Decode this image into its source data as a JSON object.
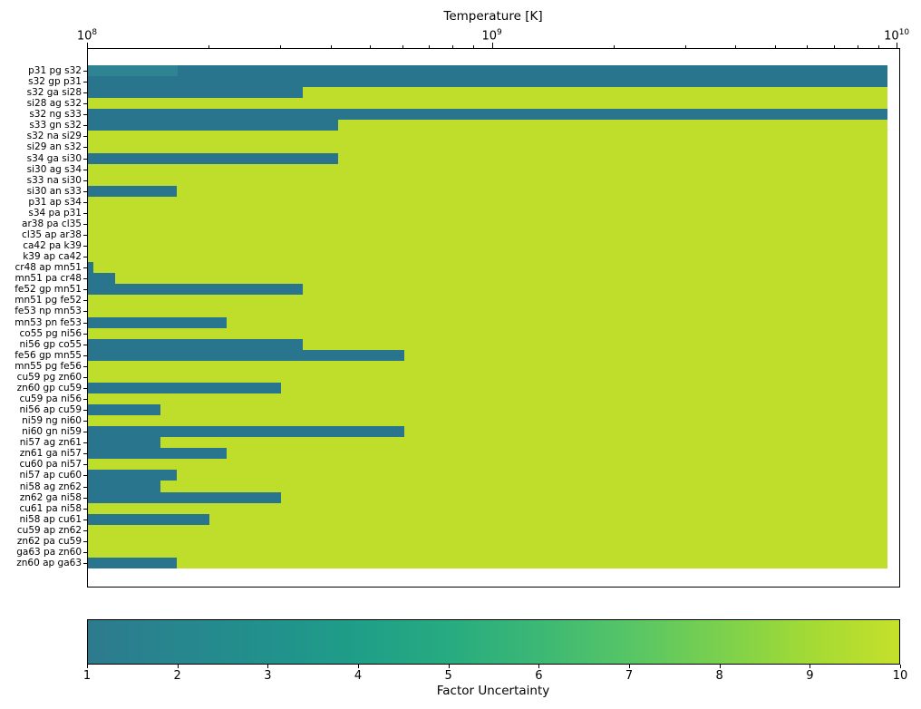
{
  "figure": {
    "top_axis_title": "Temperature [K]",
    "colorbar_label": "Factor Uncertainty"
  },
  "chart_data": {
    "type": "bar",
    "orientation": "horizontal",
    "title": "Temperature [K]",
    "x_axis": {
      "label": "Temperature [K]",
      "scale": "log",
      "min": 100000000.0,
      "max": 10200000000.0,
      "major_ticks": [
        {
          "value": 100000000.0,
          "base": "10",
          "exp": "8"
        },
        {
          "value": 1000000000.0,
          "base": "10",
          "exp": "9"
        },
        {
          "value": 10000000000.0,
          "base": "10",
          "exp": "10"
        }
      ],
      "minor_tick_values": [
        200000000.0,
        300000000.0,
        400000000.0,
        500000000.0,
        600000000.0,
        700000000.0,
        800000000.0,
        900000000.0,
        2000000000.0,
        3000000000.0,
        4000000000.0,
        5000000000.0,
        6000000000.0,
        7000000000.0,
        8000000000.0,
        9000000000.0
      ]
    },
    "bars_extent_T": 9450000000.0,
    "colors": {
      "low_uncertainty_teal": "#29758e",
      "low_uncertainty_teal_light": "#2e8492",
      "high_uncertainty_yellow": "#bede2b"
    },
    "colorbar": {
      "label": "Factor Uncertainty",
      "min": 1,
      "max": 10,
      "ticks": [
        1,
        2,
        3,
        4,
        5,
        6,
        7,
        8,
        9,
        10
      ],
      "gradient_stops": [
        "#2d7a8e",
        "#27868e",
        "#21918c",
        "#1f9e88",
        "#27ab80",
        "#3cb875",
        "#56c566",
        "#7ad04e",
        "#a3da35",
        "#c5e02a"
      ]
    },
    "bars": [
      {
        "reaction": "p31 pg s32",
        "low_color_until_T": 9450000000.0,
        "light_until_T": 167000000.0
      },
      {
        "reaction": "s32 gp p31",
        "low_color_until_T": 9450000000.0
      },
      {
        "reaction": "s32 ga si28",
        "low_color_until_T": 340000000.0
      },
      {
        "reaction": "si28 ag s32",
        "low_color_until_T": null
      },
      {
        "reaction": "s32 ng s33",
        "low_color_until_T": 9450000000.0
      },
      {
        "reaction": "s33 gn s32",
        "low_color_until_T": 415000000.0
      },
      {
        "reaction": "s32 na si29",
        "low_color_until_T": null
      },
      {
        "reaction": "si29 an s32",
        "low_color_until_T": null
      },
      {
        "reaction": "s34 ga si30",
        "low_color_until_T": 415000000.0
      },
      {
        "reaction": "si30 ag s34",
        "low_color_until_T": null
      },
      {
        "reaction": "s33 na si30",
        "low_color_until_T": null
      },
      {
        "reaction": "si30 an s33",
        "low_color_until_T": 166000000.0
      },
      {
        "reaction": "p31 ap s34",
        "low_color_until_T": null
      },
      {
        "reaction": "s34 pa p31",
        "low_color_until_T": null
      },
      {
        "reaction": "ar38 pa cl35",
        "low_color_until_T": null
      },
      {
        "reaction": "cl35 ap ar38",
        "low_color_until_T": null
      },
      {
        "reaction": "ca42 pa k39",
        "low_color_until_T": null
      },
      {
        "reaction": "k39 ap ca42",
        "low_color_until_T": null
      },
      {
        "reaction": "cr48 ap mn51",
        "low_color_until_T": 103000000.0
      },
      {
        "reaction": "mn51 pa cr48",
        "low_color_until_T": 117000000.0
      },
      {
        "reaction": "fe52 gp mn51",
        "low_color_until_T": 340000000.0
      },
      {
        "reaction": "mn51 pg fe52",
        "low_color_until_T": null
      },
      {
        "reaction": "fe53 np mn53",
        "low_color_until_T": null
      },
      {
        "reaction": "mn53 pn fe53",
        "low_color_until_T": 220000000.0
      },
      {
        "reaction": "co55 pg ni56",
        "low_color_until_T": null
      },
      {
        "reaction": "ni56 gp co55",
        "low_color_until_T": 340000000.0
      },
      {
        "reaction": "fe56 gp mn55",
        "low_color_until_T": 605000000.0
      },
      {
        "reaction": "mn55 pg fe56",
        "low_color_until_T": null
      },
      {
        "reaction": "cu59 pg zn60",
        "low_color_until_T": null
      },
      {
        "reaction": "zn60 gp cu59",
        "low_color_until_T": 300000000.0
      },
      {
        "reaction": "cu59 pa ni56",
        "low_color_until_T": null
      },
      {
        "reaction": "ni56 ap cu59",
        "low_color_until_T": 151000000.0
      },
      {
        "reaction": "ni59 ng ni60",
        "low_color_until_T": null
      },
      {
        "reaction": "ni60 gn ni59",
        "low_color_until_T": 605000000.0
      },
      {
        "reaction": "ni57 ag zn61",
        "low_color_until_T": 151000000.0
      },
      {
        "reaction": "zn61 ga ni57",
        "low_color_until_T": 220000000.0
      },
      {
        "reaction": "cu60 pa ni57",
        "low_color_until_T": null
      },
      {
        "reaction": "ni57 ap cu60",
        "low_color_until_T": 166000000.0
      },
      {
        "reaction": "ni58 ag zn62",
        "low_color_until_T": 151000000.0
      },
      {
        "reaction": "zn62 ga ni58",
        "low_color_until_T": 300000000.0
      },
      {
        "reaction": "cu61 pa ni58",
        "low_color_until_T": null
      },
      {
        "reaction": "ni58 ap cu61",
        "low_color_until_T": 200000000.0
      },
      {
        "reaction": "cu59 ap zn62",
        "low_color_until_T": null
      },
      {
        "reaction": "zn62 pa cu59",
        "low_color_until_T": null
      },
      {
        "reaction": "ga63 pa zn60",
        "low_color_until_T": null
      },
      {
        "reaction": "zn60 ap ga63",
        "low_color_until_T": 166000000.0
      }
    ]
  }
}
